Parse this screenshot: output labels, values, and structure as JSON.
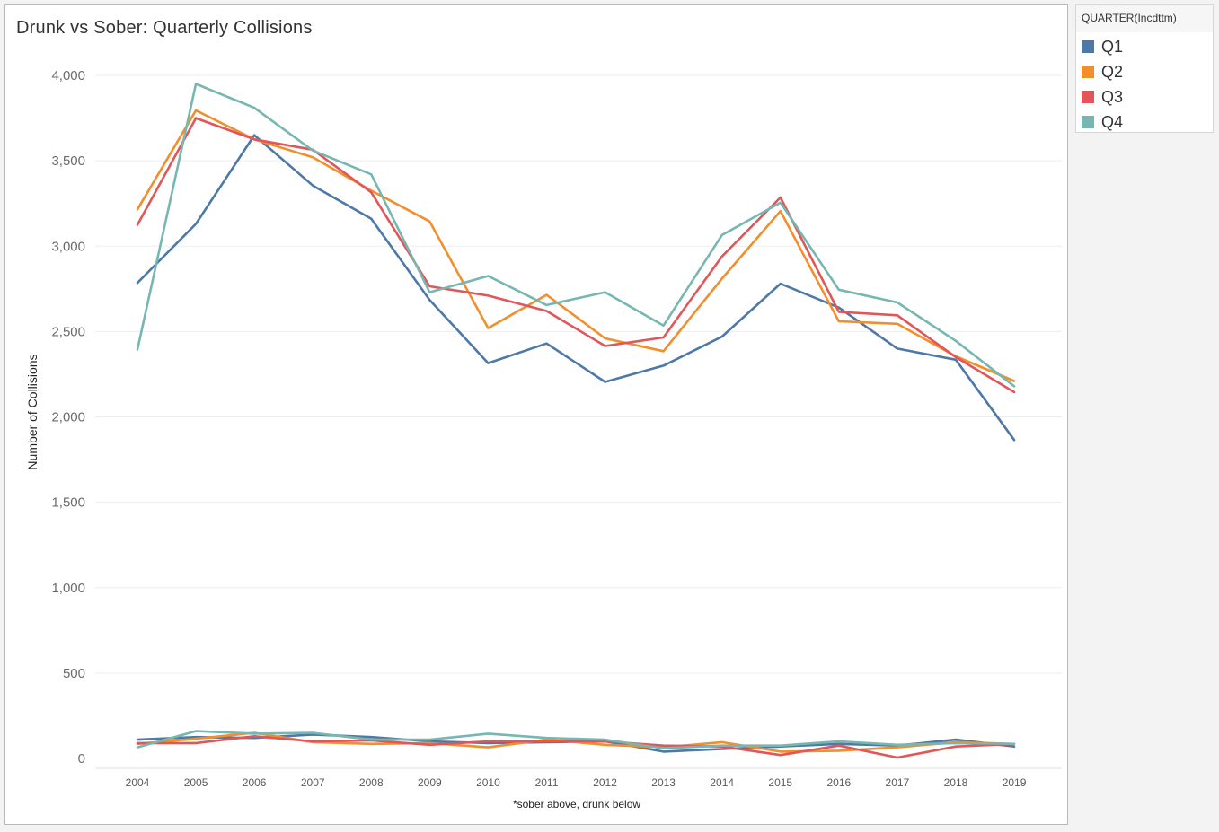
{
  "chart": {
    "title": "Drunk vs Sober: Quarterly Collisions"
  },
  "legend": {
    "title": "QUARTER(Incdttm)",
    "items": [
      {
        "label": "Q1",
        "color": "#4e79a7"
      },
      {
        "label": "Q2",
        "color": "#f28e2b"
      },
      {
        "label": "Q3",
        "color": "#e15759"
      },
      {
        "label": "Q4",
        "color": "#76b7b2"
      }
    ]
  },
  "chart_data": {
    "type": "line",
    "title": "Drunk vs Sober: Quarterly Collisions",
    "xlabel": "*sober above, drunk below",
    "ylabel": "Number of Collisions",
    "x": [
      2004,
      2005,
      2006,
      2007,
      2008,
      2009,
      2010,
      2011,
      2012,
      2013,
      2014,
      2015,
      2016,
      2017,
      2018,
      2019
    ],
    "ylim": [
      0,
      4000
    ],
    "yticks": [
      0,
      500,
      1000,
      1500,
      2000,
      2500,
      3000,
      3500,
      4000
    ],
    "ytick_labels": [
      "0",
      "500",
      "1,000",
      "1,500",
      "2,000",
      "2,500",
      "3,000",
      "3,500",
      "4,000"
    ],
    "grid": "horizontal",
    "legend_position": "right",
    "series": [
      {
        "name": "Q1",
        "group": "sober",
        "color": "#4e79a7",
        "values": [
          2785,
          3130,
          3650,
          3355,
          3160,
          2685,
          2315,
          2430,
          2205,
          2300,
          2470,
          2780,
          2640,
          2400,
          2335,
          1865
        ]
      },
      {
        "name": "Q2",
        "group": "sober",
        "color": "#f28e2b",
        "values": [
          3215,
          3795,
          3625,
          3520,
          3325,
          3145,
          2520,
          2715,
          2460,
          2385,
          2810,
          3205,
          2560,
          2545,
          2355,
          2210
        ]
      },
      {
        "name": "Q3",
        "group": "sober",
        "color": "#e15759",
        "values": [
          3125,
          3750,
          3625,
          3565,
          3315,
          2765,
          2710,
          2620,
          2415,
          2465,
          2940,
          3285,
          2615,
          2595,
          2350,
          2145
        ]
      },
      {
        "name": "Q4",
        "group": "sober",
        "color": "#76b7b2",
        "values": [
          2395,
          3950,
          3810,
          3560,
          3420,
          2730,
          2825,
          2655,
          2730,
          2535,
          3065,
          3255,
          2745,
          2670,
          2445,
          2180
        ]
      },
      {
        "name": "Q1",
        "group": "drunk",
        "color": "#4e79a7",
        "values": [
          110,
          125,
          120,
          140,
          125,
          100,
          90,
          95,
          100,
          40,
          55,
          70,
          85,
          75,
          110,
          70
        ]
      },
      {
        "name": "Q2",
        "group": "drunk",
        "color": "#f28e2b",
        "values": [
          85,
          115,
          150,
          95,
          85,
          90,
          65,
          110,
          80,
          65,
          95,
          40,
          45,
          65,
          95,
          85
        ]
      },
      {
        "name": "Q3",
        "group": "drunk",
        "color": "#e15759",
        "values": [
          90,
          90,
          130,
          100,
          105,
          80,
          100,
          100,
          100,
          75,
          70,
          20,
          75,
          5,
          70,
          85
        ]
      },
      {
        "name": "Q4",
        "group": "drunk",
        "color": "#76b7b2",
        "values": [
          65,
          160,
          145,
          150,
          110,
          110,
          145,
          120,
          110,
          60,
          75,
          75,
          100,
          80,
          90,
          85
        ]
      }
    ]
  }
}
